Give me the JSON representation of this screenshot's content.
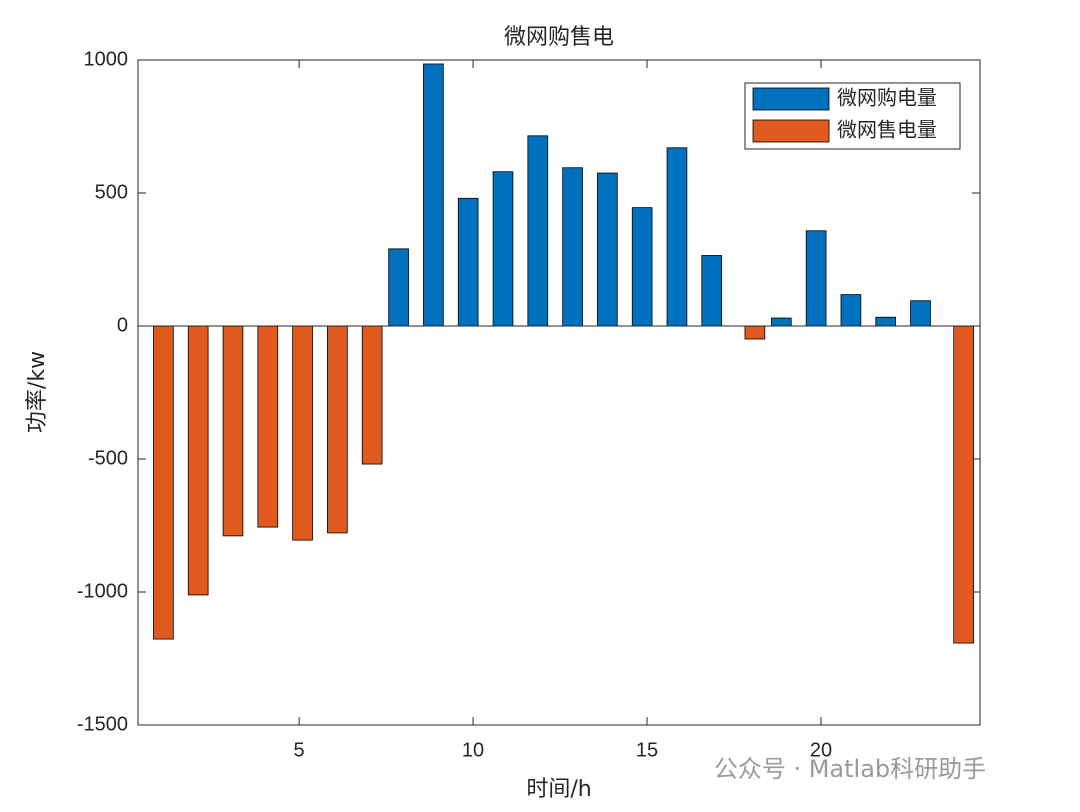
{
  "chart_data": {
    "type": "bar",
    "title": "微网购售电",
    "x_label": "时间/h",
    "y_label": "功率/kw",
    "x": [
      1,
      2,
      3,
      4,
      5,
      6,
      7,
      8,
      9,
      10,
      11,
      12,
      13,
      14,
      15,
      16,
      17,
      18,
      19,
      20,
      21,
      22,
      23,
      24
    ],
    "series": [
      {
        "name": "微网购电量",
        "color": "#0072bd",
        "values": [
          0,
          0,
          0,
          0,
          0,
          0,
          0,
          290,
          985,
          480,
          580,
          715,
          595,
          575,
          445,
          670,
          265,
          0,
          30,
          358,
          118,
          33,
          95,
          0
        ]
      },
      {
        "name": "微网售电量",
        "color": "#e05a1f",
        "values": [
          -1177,
          -1011,
          -789,
          -756,
          -805,
          -778,
          -519,
          0,
          0,
          0,
          0,
          0,
          0,
          0,
          0,
          0,
          0,
          -49,
          0,
          0,
          0,
          0,
          0,
          -1192
        ]
      }
    ],
    "xlim": [
      0.37,
      24.57
    ],
    "xticks": [
      5,
      10,
      15,
      20
    ],
    "ylim": [
      -1500,
      1000
    ],
    "yticks": [
      -1500,
      -1000,
      -500,
      0,
      500,
      1000
    ],
    "legend": "top-right",
    "grid": false,
    "watermark": "公众号 · Matlab科研助手"
  }
}
